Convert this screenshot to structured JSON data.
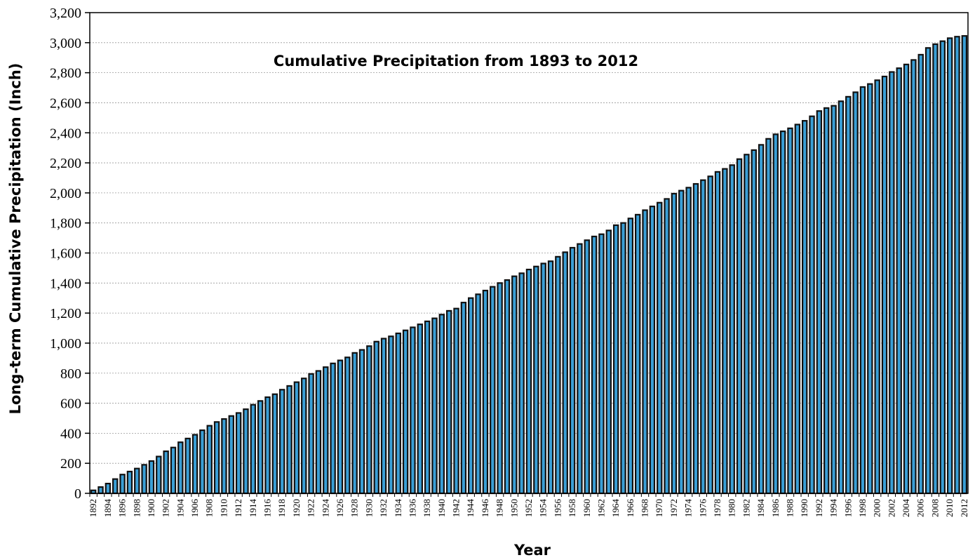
{
  "chart_data": {
    "type": "bar",
    "title": "Cumulative Precipitation from 1893 to 2012",
    "x_label": "Year",
    "y_label": "Long-term Cumulative Precipitation (Inch)",
    "color": "#3a9fd6",
    "grid": true,
    "ylim": [
      0,
      3200
    ],
    "yticks": [
      0,
      200,
      400,
      600,
      800,
      {
        "value": 1000,
        "label": "1,000"
      },
      {
        "value": 1200,
        "label": "1,200"
      },
      {
        "value": 1400,
        "label": "1,400"
      },
      {
        "value": 1600,
        "label": "1,600"
      },
      {
        "value": 1800,
        "label": "1,800"
      },
      {
        "value": 2000,
        "label": "2,000"
      },
      {
        "value": 2200,
        "label": "2,200"
      },
      {
        "value": 2400,
        "label": "2,400"
      },
      {
        "value": 2600,
        "label": "2,600"
      },
      {
        "value": 2800,
        "label": "2,800"
      },
      {
        "value": 3000,
        "label": "3,000"
      },
      {
        "value": 3200,
        "label": "3,200"
      }
    ],
    "categories": [
      "1892",
      null,
      "1894",
      null,
      "1896",
      null,
      "1898",
      null,
      "1900",
      null,
      "1902",
      null,
      "1904",
      null,
      "1906",
      null,
      "1908",
      null,
      "1910",
      null,
      "1912",
      null,
      "1914",
      null,
      "1916",
      null,
      "1918",
      null,
      "1920",
      null,
      "1922",
      null,
      "1924",
      null,
      "1926",
      null,
      "1928",
      null,
      "1930",
      null,
      "1932",
      null,
      "1934",
      null,
      "1936",
      null,
      "1938",
      null,
      "1940",
      null,
      "1942",
      null,
      "1944",
      null,
      "1946",
      null,
      "1948",
      null,
      "1950",
      null,
      "1952",
      null,
      "1954",
      null,
      "1956",
      null,
      "1958",
      null,
      "1960",
      null,
      "1962",
      null,
      "1964",
      null,
      "1966",
      null,
      "1968",
      null,
      "1970",
      null,
      "1972",
      null,
      "1974",
      null,
      "1976",
      null,
      "1978",
      null,
      "1980",
      null,
      "1982",
      null,
      "1984",
      null,
      "1986",
      null,
      "1988",
      null,
      "1990",
      null,
      "1992",
      null,
      "1994",
      null,
      "1996",
      null,
      "1998",
      null,
      "2000",
      null,
      "2002",
      null,
      "2004",
      null,
      "2006",
      null,
      "2008",
      null,
      "2010",
      null,
      "2012"
    ],
    "values": [
      20,
      42,
      65,
      95,
      125,
      145,
      165,
      190,
      215,
      245,
      280,
      305,
      340,
      365,
      390,
      420,
      450,
      475,
      495,
      515,
      535,
      560,
      590,
      615,
      640,
      660,
      690,
      715,
      740,
      765,
      795,
      815,
      840,
      865,
      885,
      905,
      935,
      955,
      980,
      1010,
      1030,
      1045,
      1065,
      1085,
      1105,
      1125,
      1145,
      1165,
      1190,
      1215,
      1230,
      1270,
      1300,
      1325,
      1350,
      1375,
      1400,
      1420,
      1445,
      1465,
      1490,
      1510,
      1530,
      1545,
      1575,
      1605,
      1635,
      1660,
      1685,
      1710,
      1725,
      1750,
      1785,
      1800,
      1830,
      1855,
      1885,
      1910,
      1935,
      1960,
      1995,
      2015,
      2035,
      2060,
      2085,
      2110,
      2140,
      2160,
      2185,
      2225,
      2255,
      2285,
      2320,
      2360,
      2390,
      2410,
      2430,
      2455,
      2480,
      2510,
      2545,
      2565,
      2580,
      2610,
      2640,
      2670,
      2705,
      2725,
      2750,
      2775,
      2805,
      2830,
      2855,
      2885,
      2920,
      2965,
      2990,
      3010,
      3030,
      3040,
      3045
    ]
  }
}
